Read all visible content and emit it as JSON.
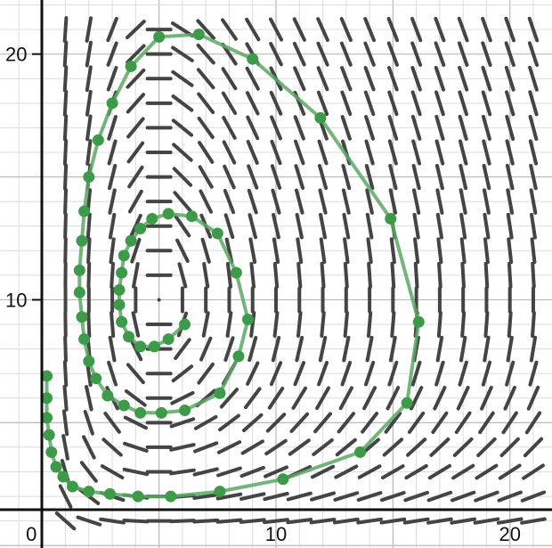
{
  "chart_data": {
    "type": "line",
    "title": "",
    "xlabel": "",
    "ylabel": "",
    "xlim": [
      -1.8,
      21.8
    ],
    "ylim": [
      -0.1,
      22.2
    ],
    "grid": true,
    "x_ticks": [
      {
        "value": 0,
        "label": "0"
      },
      {
        "value": 10,
        "label": "10"
      },
      {
        "value": 20,
        "label": "20"
      }
    ],
    "y_ticks": [
      {
        "value": 10,
        "label": "10"
      },
      {
        "value": 20,
        "label": "20"
      }
    ],
    "slope_field": {
      "x_range": [
        1,
        21
      ],
      "y_range": [
        1,
        21
      ],
      "step": 1,
      "model": "predator-prey",
      "params": {
        "a": 0.5,
        "b": 0.075,
        "c": 0.5,
        "d": 0.1,
        "x_eq": 5,
        "y_eq": 10
      },
      "color": "#444444"
    },
    "series": [
      {
        "color": "#5aa864",
        "marker_color": "#3c9a48",
        "points": [
          [
            6.1,
            9.0
          ],
          [
            5.4,
            8.4
          ],
          [
            4.8,
            8.1
          ],
          [
            4.2,
            8.1
          ],
          [
            3.7,
            8.5
          ],
          [
            3.4,
            9.1
          ],
          [
            3.3,
            9.8
          ],
          [
            3.3,
            10.4
          ],
          [
            3.4,
            11.1
          ],
          [
            3.5,
            11.8
          ],
          [
            3.8,
            12.4
          ],
          [
            4.2,
            12.9
          ],
          [
            4.7,
            13.3
          ],
          [
            5.4,
            13.5
          ],
          [
            6.4,
            13.4
          ],
          [
            7.5,
            12.7
          ],
          [
            8.3,
            11.1
          ],
          [
            8.8,
            9.2
          ],
          [
            8.4,
            7.7
          ],
          [
            7.6,
            6.2
          ],
          [
            6.1,
            5.5
          ],
          [
            5.1,
            5.4
          ],
          [
            4.2,
            5.4
          ],
          [
            3.5,
            5.7
          ],
          [
            2.8,
            6.1
          ],
          [
            2.3,
            6.8
          ],
          [
            2.0,
            7.5
          ],
          [
            1.8,
            8.4
          ],
          [
            1.7,
            9.3
          ],
          [
            1.6,
            10.3
          ],
          [
            1.6,
            11.2
          ],
          [
            1.7,
            12.4
          ],
          [
            1.8,
            13.6
          ],
          [
            2.0,
            15.0
          ],
          [
            2.4,
            16.5
          ],
          [
            3.0,
            18.0
          ],
          [
            3.8,
            19.5
          ],
          [
            5.0,
            20.7
          ],
          [
            6.7,
            20.8
          ],
          [
            9.0,
            19.8
          ],
          [
            11.9,
            17.4
          ],
          [
            14.9,
            13.3
          ],
          [
            16.1,
            9.1
          ],
          [
            15.6,
            5.8
          ],
          [
            13.6,
            3.8
          ],
          [
            10.3,
            2.7
          ],
          [
            7.6,
            2.2
          ],
          [
            5.5,
            2.0
          ],
          [
            4.1,
            2.0
          ],
          [
            2.9,
            2.1
          ],
          [
            2.0,
            2.2
          ],
          [
            1.3,
            2.4
          ],
          [
            0.9,
            2.8
          ],
          [
            0.6,
            3.2
          ],
          [
            0.4,
            3.8
          ],
          [
            0.3,
            4.5
          ],
          [
            0.2,
            5.2
          ],
          [
            0.2,
            6.0
          ],
          [
            0.2,
            6.9
          ]
        ]
      }
    ]
  }
}
